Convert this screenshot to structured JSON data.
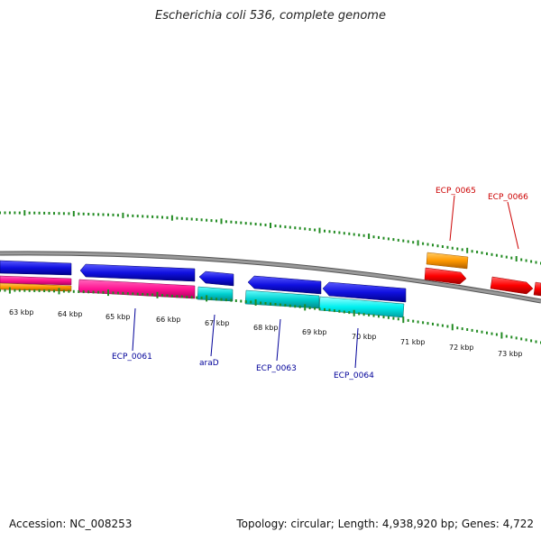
{
  "title": "Escherichia coli 536, complete genome",
  "ticks": [
    {
      "label": "63 kbp"
    },
    {
      "label": "64 kbp"
    },
    {
      "label": "65 kbp"
    },
    {
      "label": "66 kbp"
    },
    {
      "label": "67 kbp"
    },
    {
      "label": "68 kbp"
    },
    {
      "label": "69 kbp"
    },
    {
      "label": "70 kbp"
    },
    {
      "label": "71 kbp"
    },
    {
      "label": "72 kbp"
    },
    {
      "label": "73 kbp"
    }
  ],
  "genes_forward": [
    {
      "name": "ECP_0065",
      "color": "#cc0000"
    },
    {
      "name": "ECP_0066",
      "color": "#cc0000"
    }
  ],
  "genes_reverse": [
    {
      "name": "ECP_0061",
      "color": "#000099"
    },
    {
      "name": "araD",
      "color": "#000099"
    },
    {
      "name": "ECP_0063",
      "color": "#000099"
    },
    {
      "name": "ECP_0064",
      "color": "#000099"
    }
  ],
  "colors": {
    "cds_blue": "#1010e0",
    "rrna_pink": "#ff1493",
    "cyan": "#00d0d0",
    "orange": "#ff9900",
    "red": "#ff0000",
    "backbone": "#808080",
    "tick_green": "#228b22"
  },
  "footer": {
    "accession": "Accession: NC_008253",
    "summary": "Topology: circular; Length: 4,938,920 bp; Genes: 4,722"
  }
}
